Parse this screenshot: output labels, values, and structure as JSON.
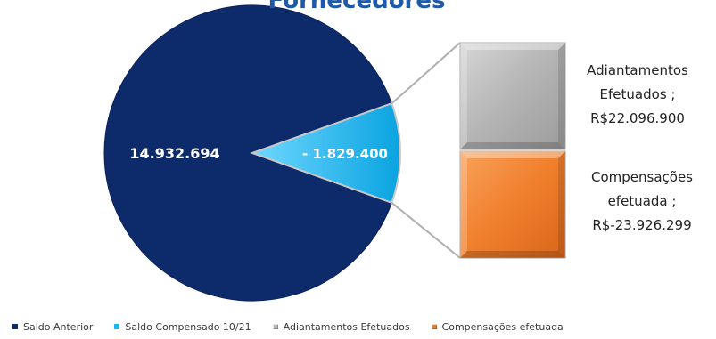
{
  "chart_data": {
    "type": "pie",
    "title": "Fornecedores",
    "slices": [
      {
        "name": "Saldo Anterior",
        "value": 14932694,
        "label": "14.932.694",
        "color": "#0d2a6b"
      },
      {
        "name": "Saldo Compensado 10/21",
        "value": -1829400,
        "label": "- 1.829.400",
        "color": "#1ab7ee"
      }
    ],
    "breakdown": [
      {
        "name": "Adiantamentos Efetuados",
        "label_lines": [
          "Adiantamentos",
          "Efetuados ;",
          "R$22.096.900"
        ],
        "color": "#b9b9b9"
      },
      {
        "name": "Compensações efetuada",
        "label_lines": [
          "Compensações",
          "efetuada  ;",
          "R$-23.926.299"
        ],
        "color": "#f07f2c"
      }
    ],
    "legend": {
      "position": "bottom",
      "items": [
        {
          "label": "Saldo Anterior",
          "color": "#0d2a6b",
          "icon": "square"
        },
        {
          "label": "Saldo Compensado 10/21",
          "color": "#1ab7ee",
          "icon": "square"
        },
        {
          "label": "Adiantamentos Efetuados",
          "color": "#b9b9b9",
          "icon": "bevel-square"
        },
        {
          "label": "Compensações efetuada",
          "color": "#f07f2c",
          "icon": "bevel-square"
        }
      ]
    }
  }
}
